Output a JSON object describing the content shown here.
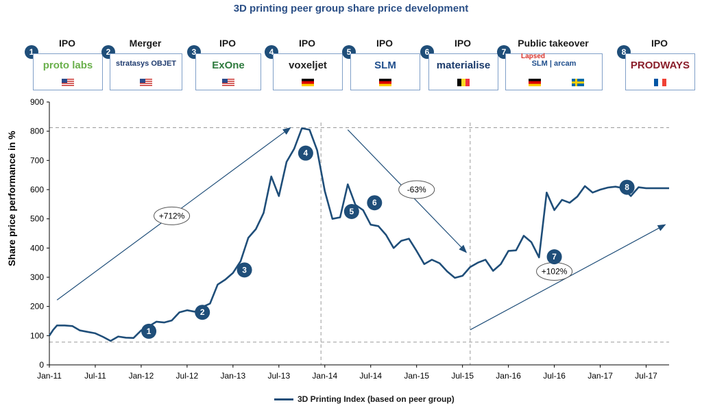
{
  "title": "3D printing peer group share price development",
  "events": [
    {
      "num": "1",
      "label": "IPO",
      "logo": "proto labs",
      "logo_color": "#6ab04c",
      "flags": [
        "us"
      ]
    },
    {
      "num": "2",
      "label": "Merger",
      "logo": "stratasys OBJET",
      "logo_color": "#1f3b6f",
      "flags": [
        "us"
      ]
    },
    {
      "num": "3",
      "label": "IPO",
      "logo": "ExOne",
      "logo_color": "#2d7a3d",
      "flags": [
        "us"
      ]
    },
    {
      "num": "4",
      "label": "IPO",
      "logo": "voxeljet",
      "logo_color": "#222222",
      "flags": [
        "de"
      ]
    },
    {
      "num": "5",
      "label": "IPO",
      "logo": "SLM",
      "logo_color": "#1f4e8c",
      "flags": [
        "de"
      ]
    },
    {
      "num": "6",
      "label": "IPO",
      "logo": "materialise",
      "logo_color": "#1a3a6b",
      "flags": [
        "be"
      ]
    },
    {
      "num": "7",
      "label": "Public takeover",
      "logo": "SLM  |  arcam",
      "logo_color": "#1f4e8c",
      "lapsed": "Lapsed",
      "flags": [
        "de",
        "se"
      ]
    },
    {
      "num": "8",
      "label": "IPO",
      "logo": "PRODWAYS",
      "logo_color": "#8a1e2a",
      "flags": [
        "fr"
      ]
    }
  ],
  "colors": {
    "series": "#1f4e79",
    "marker": "#1f4e79",
    "title": "#2b4f86",
    "dash": "#9a9a9a"
  },
  "chart_data": {
    "type": "line",
    "ylabel": "Share price performance in %",
    "xlabel": "",
    "ylim": [
      0,
      900
    ],
    "yticks": [
      0,
      100,
      200,
      300,
      400,
      500,
      600,
      700,
      800,
      900
    ],
    "xticks": [
      "Jan-11",
      "Jul-11",
      "Jan-12",
      "Jul-12",
      "Jan-13",
      "Jul-13",
      "Jan-14",
      "Jul-14",
      "Jan-15",
      "Jul-15",
      "Jan-16",
      "Jul-16",
      "Jan-17",
      "Jul-17"
    ],
    "series": [
      {
        "name": "3D Printing Index (based on peer group)",
        "x": [
          0,
          0.5,
          1,
          2,
          3,
          4,
          5,
          6,
          7,
          8,
          9,
          10,
          11,
          12,
          13,
          14,
          15,
          16,
          17,
          18,
          19,
          20,
          21,
          22,
          23,
          24,
          25,
          26,
          27,
          28,
          29,
          30,
          31,
          32,
          33,
          34,
          35,
          36,
          37,
          38,
          39,
          40,
          41,
          42,
          43,
          44,
          45,
          46,
          47,
          48,
          49,
          50,
          51,
          52,
          53,
          54,
          55,
          56,
          57,
          58,
          59,
          60,
          61,
          62,
          63,
          64,
          65,
          66,
          67,
          68,
          69,
          70,
          71,
          72,
          73,
          74,
          75,
          76,
          77,
          78,
          79,
          80,
          81
        ],
        "y": [
          100,
          120,
          135,
          135,
          133,
          118,
          113,
          108,
          96,
          82,
          97,
          93,
          92,
          118,
          132,
          148,
          145,
          152,
          180,
          187,
          182,
          198,
          210,
          275,
          292,
          315,
          355,
          435,
          465,
          520,
          645,
          578,
          695,
          740,
          810,
          805,
          735,
          595,
          500,
          505,
          618,
          548,
          530,
          480,
          475,
          445,
          400,
          425,
          432,
          390,
          345,
          360,
          348,
          320,
          298,
          305,
          335,
          350,
          360,
          322,
          345,
          390,
          392,
          442,
          420,
          368,
          590,
          530,
          565,
          555,
          576,
          612,
          590,
          600,
          607,
          610,
          605,
          578,
          608,
          605,
          605,
          605,
          605
        ],
        "color": "#1f4e79"
      }
    ],
    "markers": [
      {
        "label": "1",
        "x": 13,
        "y": 115
      },
      {
        "label": "2",
        "x": 20,
        "y": 180
      },
      {
        "label": "3",
        "x": 25.5,
        "y": 325
      },
      {
        "label": "4",
        "x": 33.5,
        "y": 725
      },
      {
        "label": "5",
        "x": 39.5,
        "y": 525
      },
      {
        "label": "6",
        "x": 42.5,
        "y": 555
      },
      {
        "label": "7",
        "x": 66,
        "y": 370
      },
      {
        "label": "8",
        "x": 75.5,
        "y": 608
      }
    ],
    "annotations": [
      {
        "text": "+712%",
        "x1": 1,
        "y1": 222,
        "x2": 31.5,
        "y2": 812,
        "lx": 16,
        "ly": 510
      },
      {
        "text": "-63%",
        "x1": 39,
        "y1": 805,
        "x2": 54.5,
        "y2": 385,
        "lx": 48,
        "ly": 600
      },
      {
        "text": "+102%",
        "x1": 55,
        "y1": 120,
        "x2": 80.5,
        "y2": 480,
        "lx": 66,
        "ly": 320
      }
    ],
    "ref_lines": {
      "horizontal": [
        812,
        78
      ],
      "vertical": [
        35.5,
        55
      ]
    },
    "legend": "bottom",
    "grid": false
  }
}
